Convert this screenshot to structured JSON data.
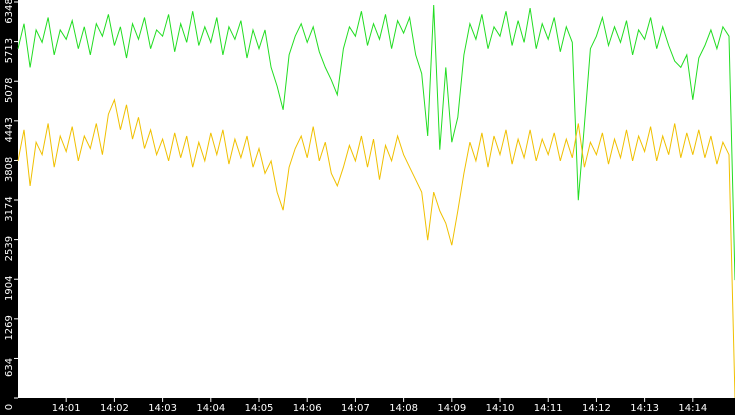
{
  "chart_data": {
    "type": "line",
    "categories": [
      null,
      null,
      null,
      null,
      null,
      null,
      null,
      null,
      "14:01",
      null,
      null,
      null,
      null,
      null,
      null,
      null,
      "14:02",
      null,
      null,
      null,
      null,
      null,
      null,
      null,
      "14:03",
      null,
      null,
      null,
      null,
      null,
      null,
      null,
      "14:04",
      null,
      null,
      null,
      null,
      null,
      null,
      null,
      "14:05",
      null,
      null,
      null,
      null,
      null,
      null,
      null,
      "14:06",
      null,
      null,
      null,
      null,
      null,
      null,
      null,
      "14:07",
      null,
      null,
      null,
      null,
      null,
      null,
      null,
      "14:08",
      null,
      null,
      null,
      null,
      null,
      null,
      null,
      "14:09",
      null,
      null,
      null,
      null,
      null,
      null,
      null,
      "14:10",
      null,
      null,
      null,
      null,
      null,
      null,
      null,
      "14:11",
      null,
      null,
      null,
      null,
      null,
      null,
      null,
      "14:12",
      null,
      null,
      null,
      null,
      null,
      null,
      null,
      "14:13",
      null,
      null,
      null,
      null,
      null,
      null,
      null,
      "14:14",
      null,
      null,
      null,
      null,
      null,
      null,
      null
    ],
    "series": [
      {
        "color": "#22dd22",
        "values": [
          5600,
          6000,
          5300,
          5900,
          5700,
          6100,
          5500,
          5900,
          5750,
          6050,
          5600,
          5950,
          5500,
          6000,
          5800,
          6150,
          5650,
          5950,
          5450,
          6000,
          5750,
          6100,
          5600,
          5900,
          5800,
          6150,
          5550,
          6000,
          5700,
          6200,
          5650,
          5950,
          5700,
          6100,
          5500,
          5950,
          5750,
          6050,
          5450,
          5900,
          5600,
          5900,
          5300,
          5000,
          4620,
          5500,
          5800,
          6000,
          5700,
          5950,
          5550,
          5300,
          5100,
          4860,
          5600,
          5950,
          5800,
          6200,
          5650,
          6000,
          5750,
          6150,
          5600,
          6050,
          5850,
          6100,
          5500,
          5200,
          4200,
          6300,
          3980,
          5300,
          4100,
          4500,
          5500,
          6000,
          5750,
          6150,
          5600,
          5950,
          5800,
          6200,
          5650,
          6050,
          5700,
          6250,
          5600,
          6000,
          5750,
          6100,
          5550,
          5950,
          5700,
          3170,
          4375,
          5600,
          5800,
          6100,
          5650,
          5950,
          5700,
          6050,
          5500,
          5900,
          5750,
          6100,
          5600,
          5950,
          5650,
          5400,
          5300,
          5500,
          4780,
          5450,
          5650,
          5900,
          5600,
          5950,
          5800,
          1890
        ]
      },
      {
        "color": "#f0c000",
        "values": [
          3800,
          4300,
          3400,
          4100,
          3900,
          4400,
          3700,
          4200,
          3950,
          4350,
          3800,
          4200,
          4000,
          4400,
          3900,
          4550,
          4780,
          4300,
          4700,
          4150,
          4500,
          4000,
          4300,
          3900,
          4150,
          3800,
          4250,
          3850,
          4200,
          3700,
          4100,
          3800,
          4250,
          3900,
          4300,
          3750,
          4150,
          3850,
          4200,
          3700,
          4000,
          3600,
          3800,
          3300,
          3010,
          3700,
          4000,
          4200,
          3850,
          4350,
          3800,
          4100,
          3600,
          3400,
          3700,
          4050,
          3800,
          4200,
          3700,
          4150,
          3500,
          4050,
          3800,
          4200,
          3900,
          3700,
          3500,
          3300,
          2530,
          3300,
          3000,
          2800,
          2450,
          3000,
          3600,
          4100,
          3800,
          4250,
          3700,
          4200,
          3900,
          4300,
          3750,
          4150,
          3850,
          4300,
          3800,
          4150,
          3900,
          4250,
          3800,
          4150,
          3850,
          4400,
          3700,
          4100,
          3900,
          4250,
          3750,
          4150,
          3850,
          4300,
          3800,
          4200,
          3950,
          4350,
          3800,
          4200,
          3900,
          4400,
          3850,
          4250,
          3900,
          4300,
          3850,
          4200,
          3750,
          4100,
          3900,
          0
        ]
      }
    ],
    "ylim": [
      0,
      6348
    ],
    "yticks": [
      0,
      634,
      1269,
      1904,
      2539,
      3174,
      3808,
      4443,
      5078,
      5713,
      6348
    ]
  }
}
